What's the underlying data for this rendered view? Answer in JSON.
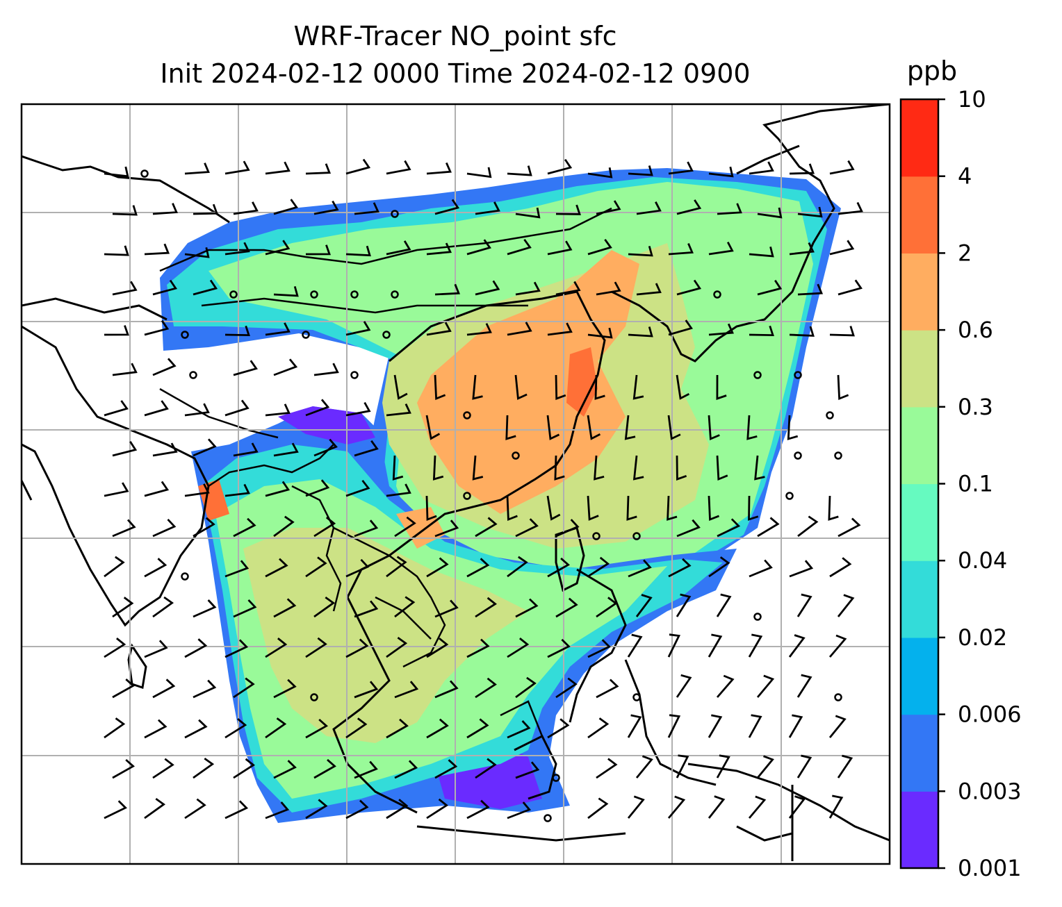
{
  "chart_data": {
    "type": "heatmap",
    "title": "WRF-Tracer NO_point sfc",
    "subtitle": "Init 2024-02-12 0000 Time 2024-02-12 0900",
    "variable": "NO_point",
    "level": "sfc",
    "init_time": "2024-02-12 0000",
    "valid_time": "2024-02-12 0900",
    "colorbar": {
      "unit": "ppb",
      "levels": [
        "0.001",
        "0.003",
        "0.006",
        "0.02",
        "0.04",
        "0.1",
        "0.3",
        "0.6",
        "2",
        "4",
        "10"
      ],
      "colors": [
        "#6a2bff",
        "#3377f5",
        "#04b1ed",
        "#33dcd9",
        "#66fac0",
        "#99fa99",
        "#cce285",
        "#ffad60",
        "#ff7037",
        "#ff2a14"
      ]
    },
    "grid": true,
    "overlays": [
      "coastlines",
      "country borders",
      "wind barbs",
      "point sources"
    ]
  }
}
